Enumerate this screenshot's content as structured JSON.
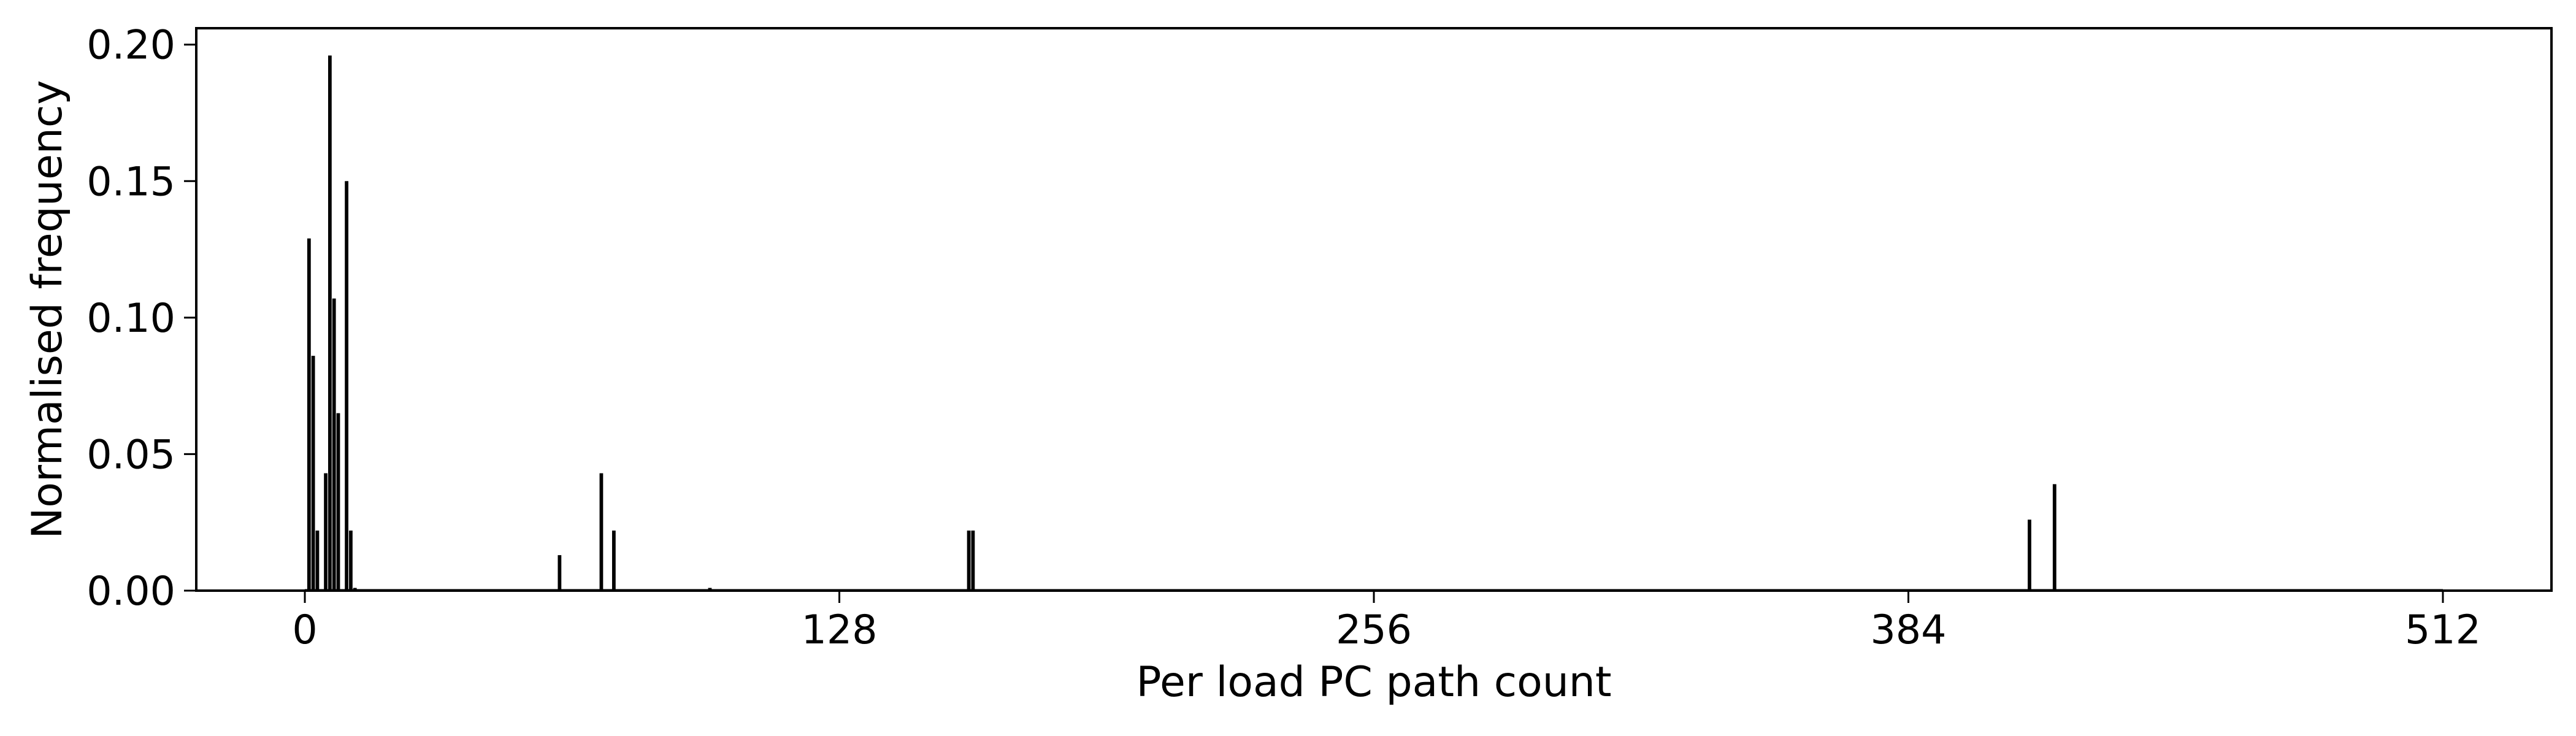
{
  "chart_data": {
    "type": "bar",
    "title": "",
    "xlabel": "Per load PC path count",
    "ylabel": "Normalised frequency",
    "xlim": [
      -26,
      538
    ],
    "ylim": [
      0,
      0.206
    ],
    "xticks": [
      0,
      128,
      256,
      384,
      512
    ],
    "xtick_labels": [
      "0",
      "128",
      "256",
      "384",
      "512"
    ],
    "yticks": [
      0,
      0.05,
      0.1,
      0.15,
      0.2
    ],
    "ytick_labels": [
      "0.00",
      "0.05",
      "0.10",
      "0.15",
      "0.20"
    ],
    "grid": false,
    "legend": "none",
    "bar_color": "#000000",
    "x": [
      1,
      2,
      3,
      5,
      6,
      7,
      8,
      10,
      11,
      12,
      35,
      42,
      55,
      61,
      71,
      74,
      97,
      159,
      160,
      413,
      419
    ],
    "values": [
      0.129,
      0.086,
      0.022,
      0.043,
      0.196,
      0.107,
      0.065,
      0.15,
      0.022,
      0.001,
      0.0005,
      0.0005,
      0.0005,
      0.013,
      0.043,
      0.022,
      0.001,
      0.022,
      0.022,
      0.026,
      0.039
    ]
  }
}
